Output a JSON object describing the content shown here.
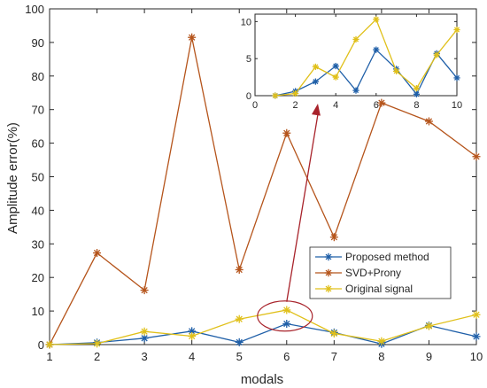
{
  "chart_data": [
    {
      "type": "line",
      "title": "",
      "xlabel": "modals",
      "ylabel": "Amplitude error(%)",
      "x": [
        1,
        2,
        3,
        4,
        5,
        6,
        7,
        8,
        9,
        10
      ],
      "xlim": [
        1,
        10
      ],
      "ylim": [
        0,
        100
      ],
      "xticks": [
        "1",
        "2",
        "3",
        "4",
        "5",
        "6",
        "7",
        "8",
        "9",
        "10"
      ],
      "yticks": [
        "0",
        "10",
        "20",
        "30",
        "40",
        "50",
        "60",
        "70",
        "80",
        "90",
        "100"
      ],
      "grid": false,
      "legend_position": "bottom-right",
      "series": [
        {
          "name": "Proposed method",
          "color": "#1f5fa8",
          "marker": "asterisk",
          "values": [
            0,
            0.6,
            1.9,
            4,
            0.7,
            6.2,
            3.6,
            0.2,
            5.7,
            2.4
          ]
        },
        {
          "name": "SVD+Prony",
          "color": "#b5541b",
          "marker": "asterisk",
          "values": [
            0,
            27.3,
            16.2,
            91.5,
            22.3,
            63,
            32,
            72,
            66.5,
            56
          ]
        },
        {
          "name": "Original signal",
          "color": "#e0c01a",
          "marker": "asterisk",
          "values": [
            0,
            0.3,
            3.9,
            2.5,
            7.6,
            10.3,
            3.3,
            1,
            5.5,
            8.9
          ]
        }
      ],
      "annotation": {
        "type": "ellipse-with-arrow",
        "color": "#a8232b",
        "target_x": 6
      }
    },
    {
      "type": "line",
      "role": "inset",
      "xlim": [
        0,
        10
      ],
      "ylim": [
        0,
        11
      ],
      "xticks": [
        "0",
        "2",
        "4",
        "6",
        "8",
        "10"
      ],
      "yticks": [
        "0",
        "5",
        "10"
      ],
      "x": [
        1,
        2,
        3,
        4,
        5,
        6,
        7,
        8,
        9,
        10
      ],
      "series": [
        {
          "color": "#1f5fa8",
          "values": [
            0,
            0.6,
            1.9,
            4,
            0.7,
            6.2,
            3.6,
            0.2,
            5.7,
            2.4
          ]
        },
        {
          "color": "#e0c01a",
          "values": [
            0,
            0.3,
            3.9,
            2.5,
            7.6,
            10.3,
            3.3,
            1,
            5.5,
            8.9
          ]
        }
      ]
    }
  ]
}
